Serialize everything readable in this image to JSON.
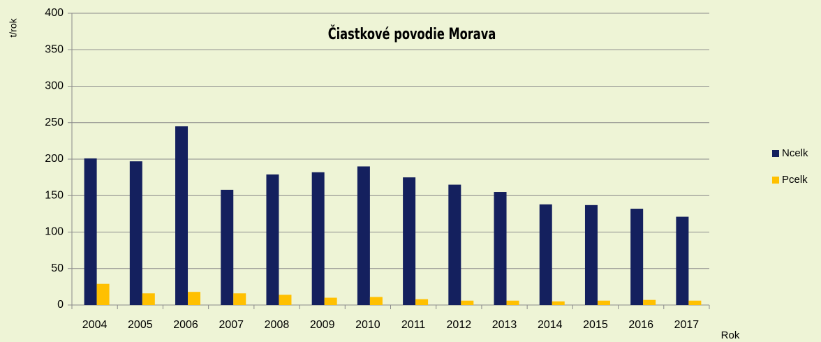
{
  "chart_data": {
    "type": "bar",
    "title": "Čiastkové povodie Morava",
    "y_label": "t/rok",
    "x_label": "Rok",
    "categories": [
      "2004",
      "2005",
      "2006",
      "2007",
      "2008",
      "2009",
      "2010",
      "2011",
      "2012",
      "2013",
      "2014",
      "2015",
      "2016",
      "2017"
    ],
    "series": [
      {
        "name": "Ncelk",
        "color": "#14205e",
        "values": [
          201,
          197,
          245,
          158,
          179,
          182,
          190,
          175,
          165,
          155,
          138,
          137,
          132,
          121
        ]
      },
      {
        "name": "Pcelk",
        "color": "#ffc000",
        "values": [
          29,
          16,
          18,
          16,
          14,
          10,
          11,
          8,
          6,
          6,
          5,
          6,
          7,
          6
        ]
      }
    ],
    "ylim": [
      0,
      400
    ],
    "yticks": [
      0,
      50,
      100,
      150,
      200,
      250,
      300,
      350,
      400
    ],
    "grid": true,
    "legend": "right"
  }
}
